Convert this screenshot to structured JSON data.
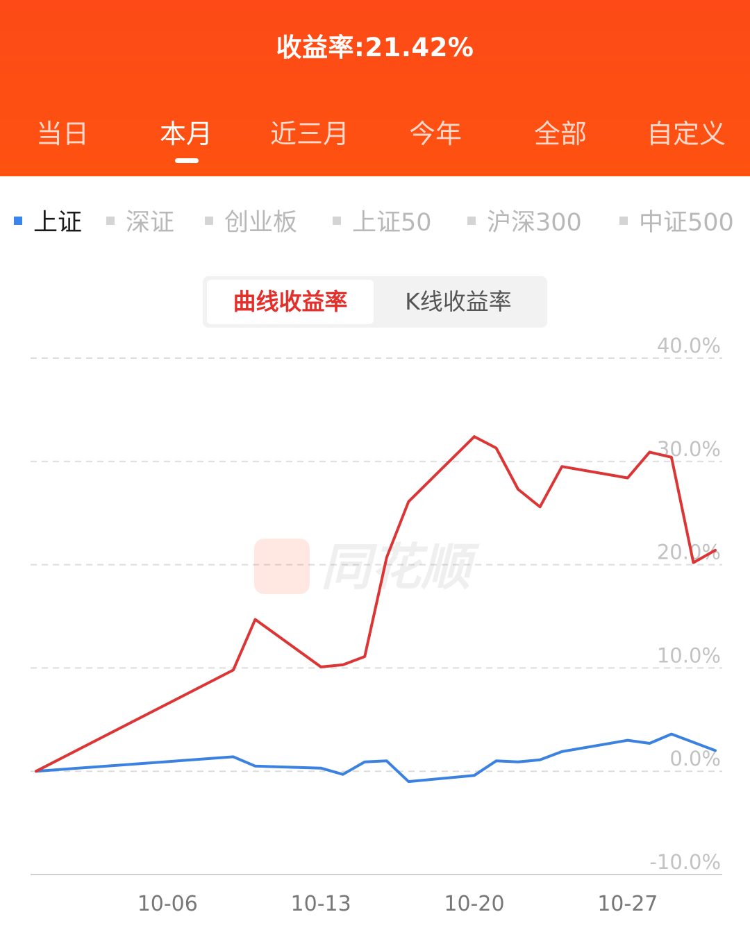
{
  "header": {
    "title": "收益率:21.42%",
    "tabs": [
      {
        "label": "当日"
      },
      {
        "label": "本月"
      },
      {
        "label": "近三月"
      },
      {
        "label": "今年"
      },
      {
        "label": "全部"
      },
      {
        "label": "自定义"
      }
    ],
    "active_tab": 1,
    "colors": {
      "header_bg": "#fd4a17"
    }
  },
  "indices": [
    {
      "label": "上证"
    },
    {
      "label": "深证"
    },
    {
      "label": "创业板"
    },
    {
      "label": "上证50"
    },
    {
      "label": "沪深300"
    },
    {
      "label": "中证500"
    }
  ],
  "toggle": {
    "curve_label": "曲线收益率",
    "kline_label": "K线收益率"
  },
  "watermark": {
    "text": "同花顺"
  },
  "chart_data": {
    "type": "line",
    "ylim": [
      -10,
      40
    ],
    "yticks": [
      40,
      30,
      20,
      10,
      0,
      -10
    ],
    "ytick_labels": [
      "40.0%",
      "30.0%",
      "20.0%",
      "10.0%",
      "0.0%",
      "-10.0%"
    ],
    "xlim": [
      "2025-09-30",
      "2025-10-31"
    ],
    "xticks": [
      "2025-10-06",
      "2025-10-13",
      "2025-10-20",
      "2025-10-27"
    ],
    "xtick_labels": [
      "10-06",
      "10-13",
      "10-20",
      "10-27"
    ],
    "grid": true,
    "x": [
      "2025-09-30",
      "2025-10-09",
      "2025-10-10",
      "2025-10-13",
      "2025-10-14",
      "2025-10-15",
      "2025-10-16",
      "2025-10-17",
      "2025-10-20",
      "2025-10-21",
      "2025-10-22",
      "2025-10-23",
      "2025-10-24",
      "2025-10-27",
      "2025-10-28",
      "2025-10-29",
      "2025-10-30",
      "2025-10-31"
    ],
    "series": [
      {
        "color": "#dc3535",
        "values": [
          0.0,
          9.8,
          14.7,
          10.1,
          10.3,
          11.1,
          20.7,
          26.1,
          32.4,
          31.3,
          27.3,
          25.6,
          29.5,
          28.4,
          30.9,
          30.4,
          20.2,
          21.4
        ]
      },
      {
        "color": "#3b82e0",
        "values": [
          0.0,
          1.4,
          0.5,
          0.3,
          -0.3,
          0.9,
          1.0,
          -1.0,
          -0.4,
          1.0,
          0.9,
          1.1,
          1.9,
          3.0,
          2.7,
          3.6,
          2.8,
          2.0
        ]
      }
    ]
  }
}
